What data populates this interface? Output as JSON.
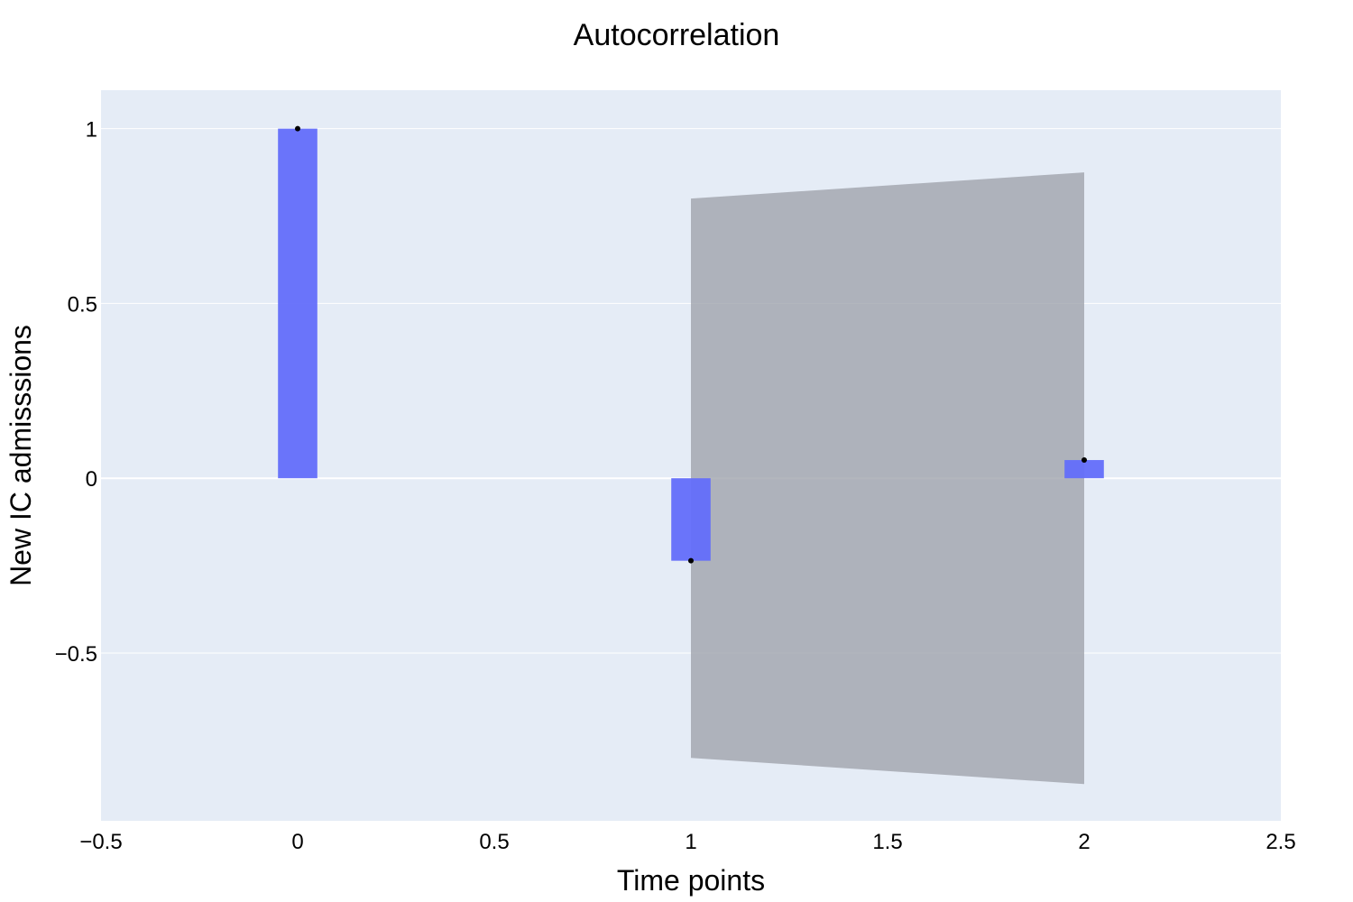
{
  "chart_data": {
    "type": "bar",
    "title": "Autocorrelation",
    "xlabel": "Time points",
    "ylabel": "New IC admisssions",
    "xlim": [
      -0.5,
      2.5
    ],
    "ylim": [
      -0.98,
      1.11
    ],
    "x_ticks": [
      -0.5,
      0,
      0.5,
      1,
      1.5,
      2,
      2.5
    ],
    "x_tick_labels": [
      "−0.5",
      "0",
      "0.5",
      "1",
      "1.5",
      "2",
      "2.5"
    ],
    "y_ticks": [
      -0.5,
      0,
      0.5,
      1
    ],
    "y_tick_labels": [
      "−0.5",
      "0",
      "0.5",
      "1"
    ],
    "grid": true,
    "bar_width": 0.1,
    "series": [
      {
        "type": "bar",
        "x": [
          0,
          1,
          2
        ],
        "values": [
          1.0,
          -0.236,
          0.052
        ],
        "color": "#636efa"
      },
      {
        "type": "scatter",
        "x": [
          0,
          1,
          2
        ],
        "values": [
          1.0,
          -0.236,
          0.052
        ],
        "color": "#000000"
      },
      {
        "type": "area",
        "x": [
          1,
          2
        ],
        "upper": [
          0.8,
          0.875
        ],
        "lower": [
          -0.8,
          -0.875
        ],
        "color": "#a0a4ad"
      }
    ],
    "colors": {
      "plot_background": "#e5ecf6",
      "gridline": "#ffffff",
      "bar": "#636efa",
      "band": "#a0a4ad",
      "marker": "#000000"
    }
  }
}
